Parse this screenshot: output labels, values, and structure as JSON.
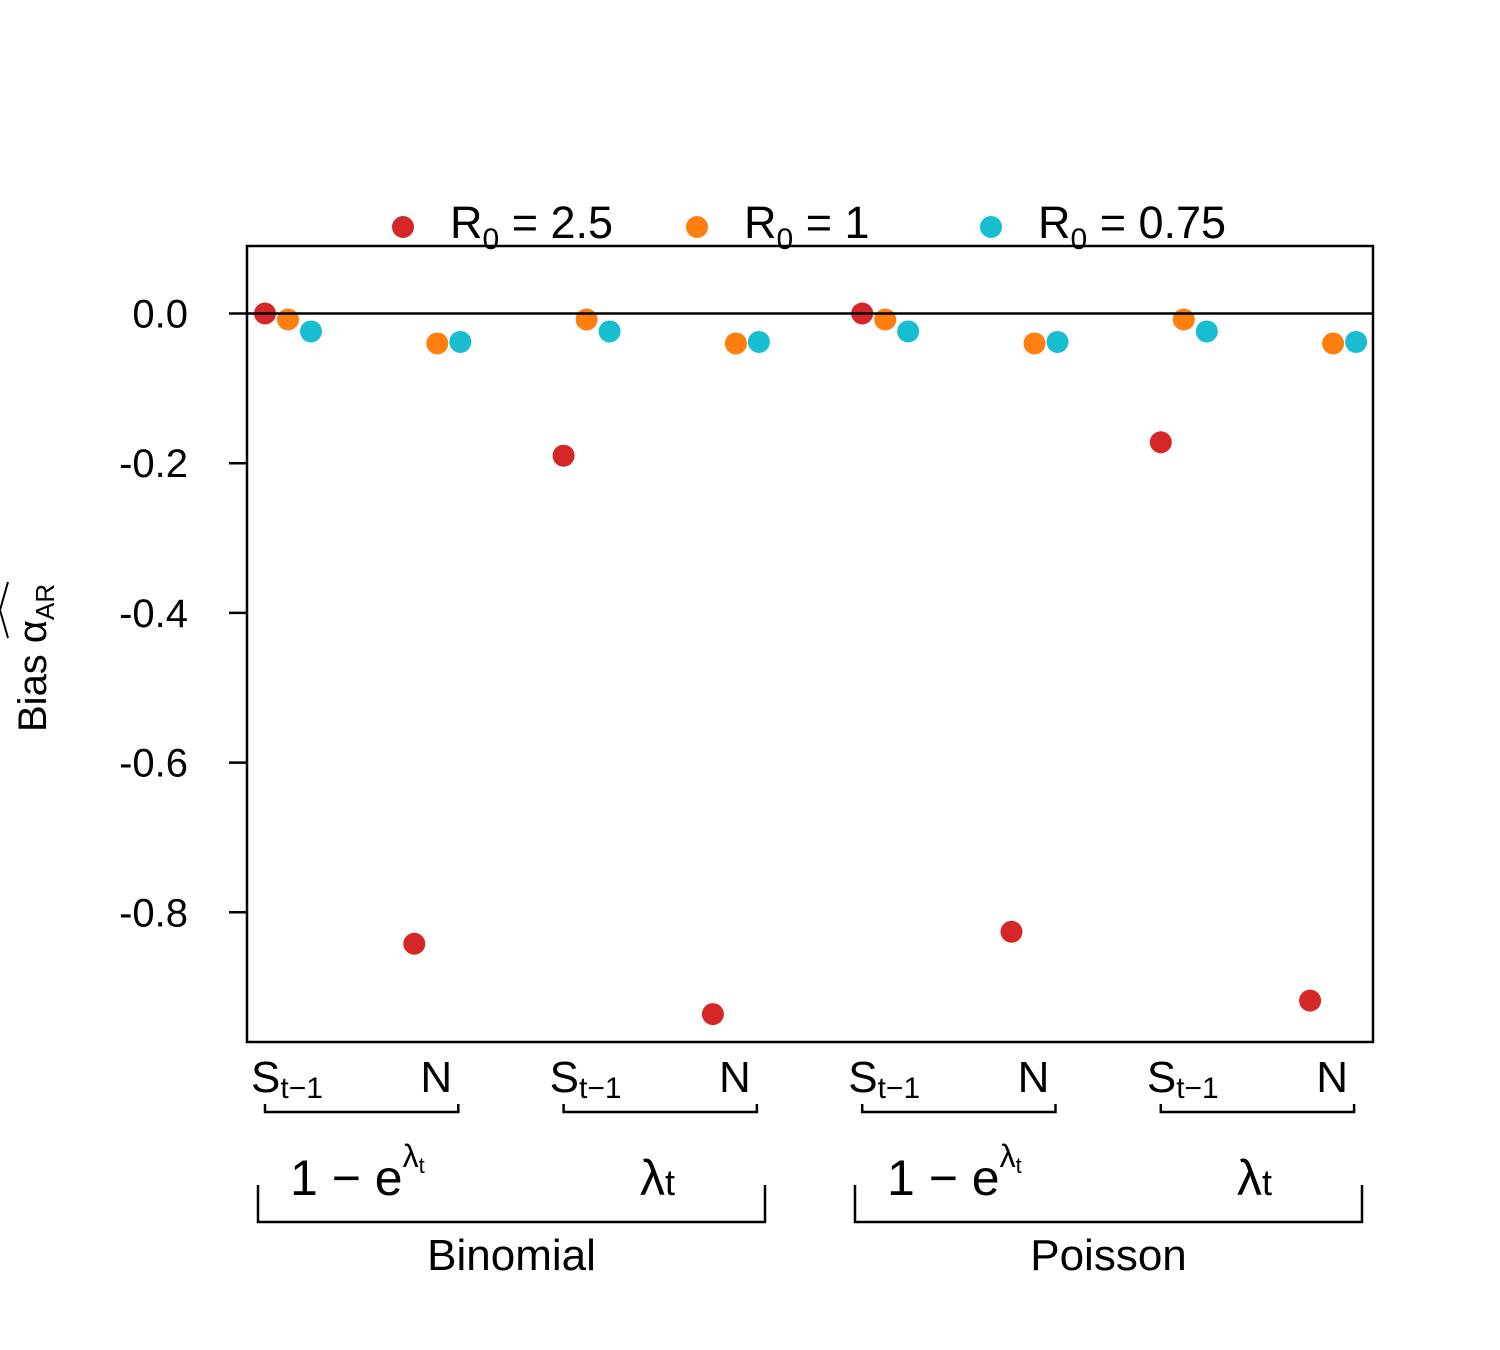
{
  "chart_data": {
    "type": "scatter",
    "ylabel": "Bias",
    "ylabel_symbol": "α",
    "ylabel_subscript": "AR",
    "ylim": [
      -0.96,
      0.09
    ],
    "yticks": [
      0.0,
      -0.2,
      -0.4,
      -0.6,
      -0.8
    ],
    "ytick_labels": [
      "0.0",
      "-0.2",
      "-0.4",
      "-0.6",
      "-0.8"
    ],
    "reference_line_y": 0,
    "grid": false,
    "legend_position": "top",
    "x_tick_labels": [
      {
        "main": "S",
        "sub": "t−1"
      },
      {
        "main": "N",
        "sub": ""
      },
      {
        "main": "S",
        "sub": "t−1"
      },
      {
        "main": "N",
        "sub": ""
      },
      {
        "main": "S",
        "sub": "t−1"
      },
      {
        "main": "N",
        "sub": ""
      },
      {
        "main": "S",
        "sub": "t−1"
      },
      {
        "main": "N",
        "sub": ""
      }
    ],
    "link_labels": [
      {
        "base": "1 − e",
        "sup": "λ",
        "supsub": "t"
      },
      {
        "base": "λ",
        "sub": "t"
      },
      {
        "base": "1 − e",
        "sup": "λ",
        "supsub": "t"
      },
      {
        "base": "λ",
        "sub": "t"
      }
    ],
    "group_labels": [
      "Binomial",
      "Poisson"
    ],
    "series": [
      {
        "label_base": "R",
        "label_sub": "0",
        "label_value": "= 2.5",
        "color": "#d62728",
        "values": [
          0.0,
          -0.842,
          -0.19,
          -0.936,
          0.0,
          -0.826,
          -0.172,
          -0.918
        ]
      },
      {
        "label_base": "R",
        "label_sub": "0",
        "label_value": "= 1",
        "color": "#ff7f0e",
        "values": [
          -0.008,
          -0.04,
          -0.008,
          -0.04,
          -0.008,
          -0.04,
          -0.008,
          -0.04
        ]
      },
      {
        "label_base": "R",
        "label_sub": "0",
        "label_value": "= 0.75",
        "color": "#17becf",
        "values": [
          -0.024,
          -0.038,
          -0.024,
          -0.038,
          -0.024,
          -0.038,
          -0.024,
          -0.038
        ]
      }
    ]
  }
}
